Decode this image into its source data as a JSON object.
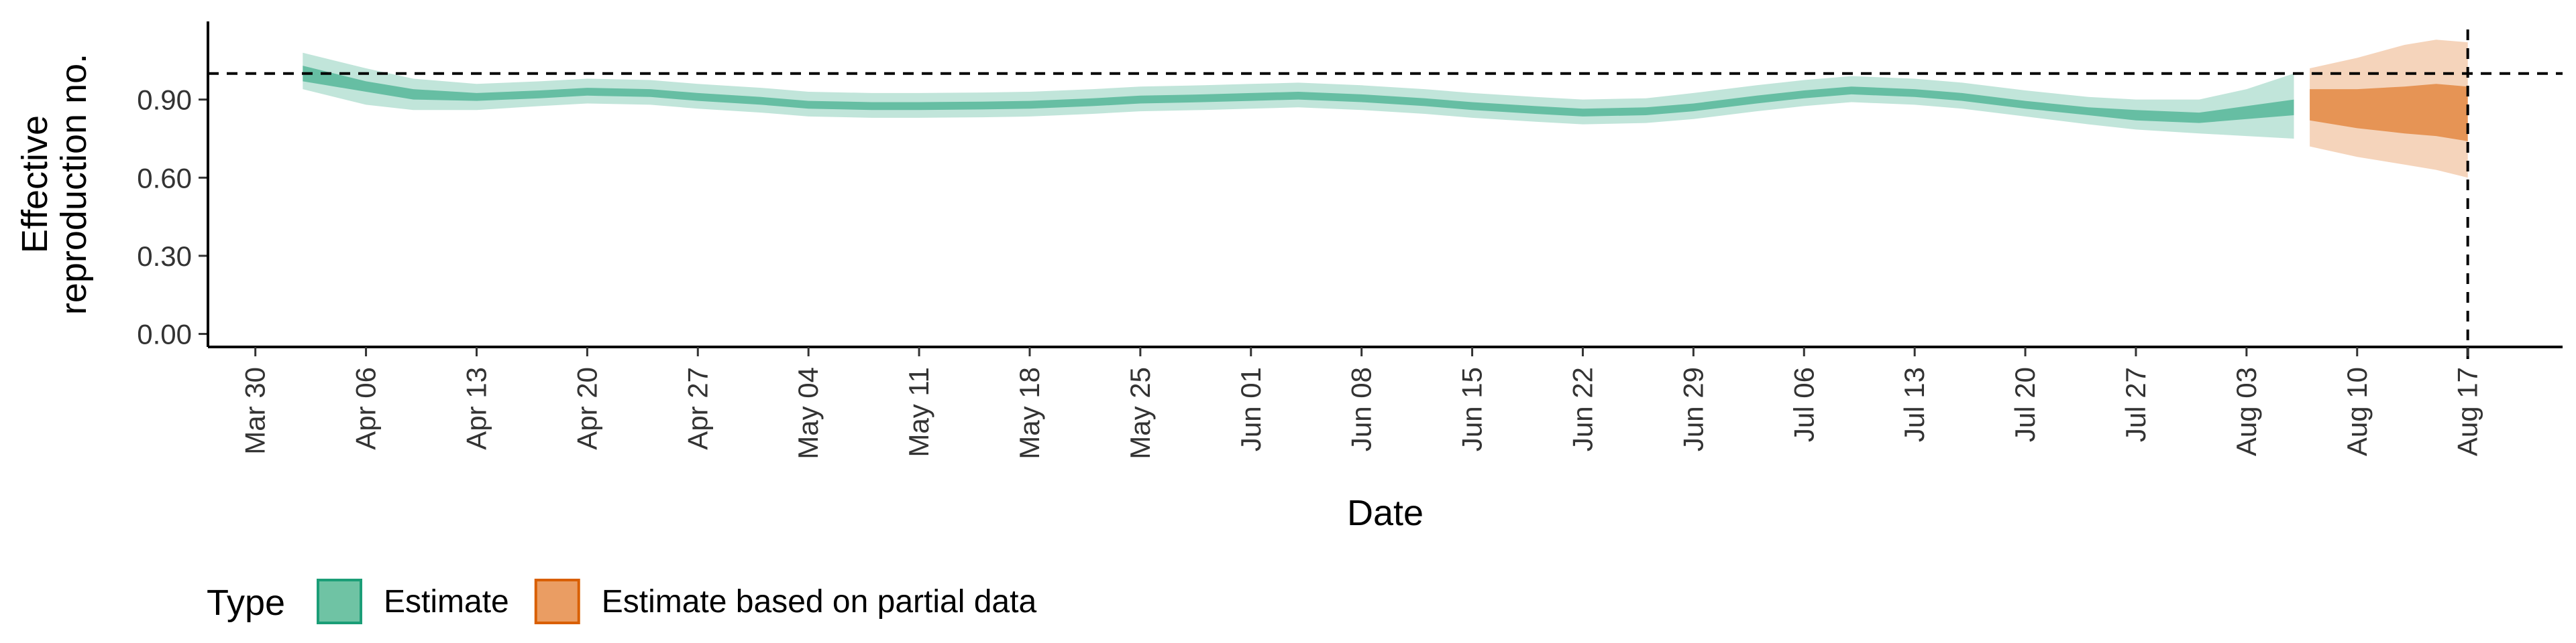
{
  "chart_data": {
    "type": "area",
    "xlabel": "Date",
    "ylabel_lines": [
      "Effective",
      "reproduction no."
    ],
    "ylim": [
      -0.05,
      1.2
    ],
    "y_ticks": [
      0.0,
      0.3,
      0.6,
      0.9
    ],
    "y_tick_labels": [
      "0.00",
      "0.30",
      "0.60",
      "0.90"
    ],
    "x_ticks": [
      "2020-03-30",
      "2020-04-06",
      "2020-04-13",
      "2020-04-20",
      "2020-04-27",
      "2020-05-04",
      "2020-05-11",
      "2020-05-18",
      "2020-05-25",
      "2020-06-01",
      "2020-06-08",
      "2020-06-15",
      "2020-06-22",
      "2020-06-29",
      "2020-07-06",
      "2020-07-13",
      "2020-07-20",
      "2020-07-27",
      "2020-08-03",
      "2020-08-10",
      "2020-08-17"
    ],
    "x_tick_labels": [
      "Mar 30",
      "Apr 06",
      "Apr 13",
      "Apr 20",
      "Apr 27",
      "May 04",
      "May 11",
      "May 18",
      "May 25",
      "Jun 01",
      "Jun 08",
      "Jun 15",
      "Jun 22",
      "Jun 29",
      "Jul 06",
      "Jul 13",
      "Jul 20",
      "Jul 27",
      "Aug 03",
      "Aug 10",
      "Aug 17"
    ],
    "xlim": [
      "2020-03-27",
      "2020-08-23"
    ],
    "reference_line_y": 1.0,
    "reference_line_x": "2020-08-17",
    "grid": false,
    "legend": {
      "position": "bottom-left",
      "title": "Type",
      "entries": [
        {
          "label": "Estimate",
          "color": "#1b9e77",
          "fill": "#6fc3a4"
        },
        {
          "label": "Estimate based on partial data",
          "color": "#d95f02",
          "fill": "#ea9d63"
        }
      ]
    },
    "series": [
      {
        "name": "Estimate",
        "color": "#1b9e77",
        "points": [
          {
            "x": "2020-04-02",
            "median": 1.0,
            "inner": [
              0.97,
              1.03
            ],
            "outer": [
              0.94,
              1.08
            ]
          },
          {
            "x": "2020-04-06",
            "median": 0.95,
            "inner": [
              0.93,
              0.97
            ],
            "outer": [
              0.88,
              1.02
            ]
          },
          {
            "x": "2020-04-09",
            "median": 0.92,
            "inner": [
              0.9,
              0.94
            ],
            "outer": [
              0.86,
              0.98
            ]
          },
          {
            "x": "2020-04-13",
            "median": 0.91,
            "inner": [
              0.895,
              0.925
            ],
            "outer": [
              0.86,
              0.96
            ]
          },
          {
            "x": "2020-04-17",
            "median": 0.92,
            "inner": [
              0.905,
              0.935
            ],
            "outer": [
              0.875,
              0.97
            ]
          },
          {
            "x": "2020-04-20",
            "median": 0.93,
            "inner": [
              0.915,
              0.945
            ],
            "outer": [
              0.885,
              0.98
            ]
          },
          {
            "x": "2020-04-24",
            "median": 0.925,
            "inner": [
              0.91,
              0.94
            ],
            "outer": [
              0.88,
              0.975
            ]
          },
          {
            "x": "2020-04-27",
            "median": 0.91,
            "inner": [
              0.895,
              0.925
            ],
            "outer": [
              0.865,
              0.96
            ]
          },
          {
            "x": "2020-05-01",
            "median": 0.895,
            "inner": [
              0.88,
              0.91
            ],
            "outer": [
              0.85,
              0.945
            ]
          },
          {
            "x": "2020-05-04",
            "median": 0.88,
            "inner": [
              0.865,
              0.895
            ],
            "outer": [
              0.835,
              0.93
            ]
          },
          {
            "x": "2020-05-08",
            "median": 0.875,
            "inner": [
              0.86,
              0.89
            ],
            "outer": [
              0.83,
              0.925
            ]
          },
          {
            "x": "2020-05-11",
            "median": 0.875,
            "inner": [
              0.86,
              0.89
            ],
            "outer": [
              0.83,
              0.925
            ]
          },
          {
            "x": "2020-05-15",
            "median": 0.877,
            "inner": [
              0.862,
              0.892
            ],
            "outer": [
              0.832,
              0.927
            ]
          },
          {
            "x": "2020-05-18",
            "median": 0.88,
            "inner": [
              0.865,
              0.895
            ],
            "outer": [
              0.835,
              0.93
            ]
          },
          {
            "x": "2020-05-22",
            "median": 0.89,
            "inner": [
              0.875,
              0.905
            ],
            "outer": [
              0.845,
              0.94
            ]
          },
          {
            "x": "2020-05-25",
            "median": 0.9,
            "inner": [
              0.885,
              0.915
            ],
            "outer": [
              0.855,
              0.95
            ]
          },
          {
            "x": "2020-05-29",
            "median": 0.905,
            "inner": [
              0.89,
              0.92
            ],
            "outer": [
              0.86,
              0.955
            ]
          },
          {
            "x": "2020-06-01",
            "median": 0.91,
            "inner": [
              0.895,
              0.925
            ],
            "outer": [
              0.865,
              0.96
            ]
          },
          {
            "x": "2020-06-04",
            "median": 0.915,
            "inner": [
              0.9,
              0.93
            ],
            "outer": [
              0.87,
              0.965
            ]
          },
          {
            "x": "2020-06-08",
            "median": 0.905,
            "inner": [
              0.89,
              0.92
            ],
            "outer": [
              0.86,
              0.955
            ]
          },
          {
            "x": "2020-06-12",
            "median": 0.89,
            "inner": [
              0.875,
              0.905
            ],
            "outer": [
              0.845,
              0.94
            ]
          },
          {
            "x": "2020-06-15",
            "median": 0.875,
            "inner": [
              0.86,
              0.89
            ],
            "outer": [
              0.83,
              0.925
            ]
          },
          {
            "x": "2020-06-19",
            "median": 0.86,
            "inner": [
              0.845,
              0.875
            ],
            "outer": [
              0.815,
              0.91
            ]
          },
          {
            "x": "2020-06-22",
            "median": 0.85,
            "inner": [
              0.835,
              0.865
            ],
            "outer": [
              0.805,
              0.9
            ]
          },
          {
            "x": "2020-06-26",
            "median": 0.855,
            "inner": [
              0.84,
              0.87
            ],
            "outer": [
              0.81,
              0.905
            ]
          },
          {
            "x": "2020-06-29",
            "median": 0.87,
            "inner": [
              0.855,
              0.885
            ],
            "outer": [
              0.825,
              0.925
            ]
          },
          {
            "x": "2020-07-03",
            "median": 0.9,
            "inner": [
              0.885,
              0.915
            ],
            "outer": [
              0.855,
              0.955
            ]
          },
          {
            "x": "2020-07-06",
            "median": 0.92,
            "inner": [
              0.905,
              0.935
            ],
            "outer": [
              0.875,
              0.975
            ]
          },
          {
            "x": "2020-07-09",
            "median": 0.935,
            "inner": [
              0.92,
              0.95
            ],
            "outer": [
              0.89,
              0.99
            ]
          },
          {
            "x": "2020-07-13",
            "median": 0.925,
            "inner": [
              0.91,
              0.94
            ],
            "outer": [
              0.88,
              0.98
            ]
          },
          {
            "x": "2020-07-16",
            "median": 0.91,
            "inner": [
              0.895,
              0.925
            ],
            "outer": [
              0.865,
              0.965
            ]
          },
          {
            "x": "2020-07-20",
            "median": 0.88,
            "inner": [
              0.865,
              0.895
            ],
            "outer": [
              0.835,
              0.935
            ]
          },
          {
            "x": "2020-07-24",
            "median": 0.855,
            "inner": [
              0.84,
              0.87
            ],
            "outer": [
              0.805,
              0.91
            ]
          },
          {
            "x": "2020-07-27",
            "median": 0.84,
            "inner": [
              0.82,
              0.86
            ],
            "outer": [
              0.785,
              0.9
            ]
          },
          {
            "x": "2020-07-31",
            "median": 0.83,
            "inner": [
              0.81,
              0.85
            ],
            "outer": [
              0.77,
              0.9
            ]
          },
          {
            "x": "2020-08-03",
            "median": 0.85,
            "inner": [
              0.825,
              0.875
            ],
            "outer": [
              0.76,
              0.94
            ]
          },
          {
            "x": "2020-08-06",
            "median": 0.87,
            "inner": [
              0.84,
              0.9
            ],
            "outer": [
              0.75,
              1.0
            ]
          }
        ]
      },
      {
        "name": "Estimate based on partial data",
        "color": "#d95f02",
        "points": [
          {
            "x": "2020-08-07",
            "median": 0.88,
            "inner": [
              0.82,
              0.94
            ],
            "outer": [
              0.72,
              1.02
            ]
          },
          {
            "x": "2020-08-10",
            "median": 0.87,
            "inner": [
              0.79,
              0.94
            ],
            "outer": [
              0.68,
              1.06
            ]
          },
          {
            "x": "2020-08-13",
            "median": 0.88,
            "inner": [
              0.77,
              0.95
            ],
            "outer": [
              0.65,
              1.11
            ]
          },
          {
            "x": "2020-08-15",
            "median": 0.88,
            "inner": [
              0.76,
              0.96
            ],
            "outer": [
              0.63,
              1.13
            ]
          },
          {
            "x": "2020-08-17",
            "median": 0.87,
            "inner": [
              0.74,
              0.95
            ],
            "outer": [
              0.6,
              1.12
            ]
          }
        ]
      }
    ]
  }
}
